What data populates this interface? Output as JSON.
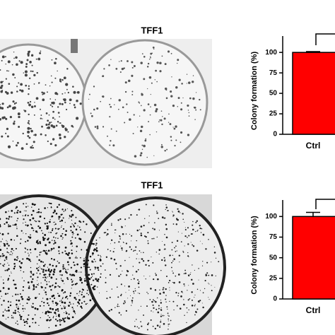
{
  "panel_titles": [
    "TFF1",
    "TFF1"
  ],
  "chart_data": [
    {
      "type": "bar",
      "y_label": "Colony formation (%)",
      "categories": [
        "Ctrl"
      ],
      "values": [
        100
      ],
      "errors": [
        1
      ],
      "color": "#ff0000",
      "ylim": [
        0,
        120
      ],
      "yticks": [
        0,
        25,
        50,
        75,
        100
      ]
    },
    {
      "type": "bar",
      "y_label": "Colony formation (%)",
      "categories": [
        "Ctrl"
      ],
      "values": [
        100
      ],
      "errors": [
        5
      ],
      "color": "#ff0000",
      "ylim": [
        0,
        120
      ],
      "yticks": [
        0,
        25,
        50,
        75,
        100
      ]
    }
  ]
}
